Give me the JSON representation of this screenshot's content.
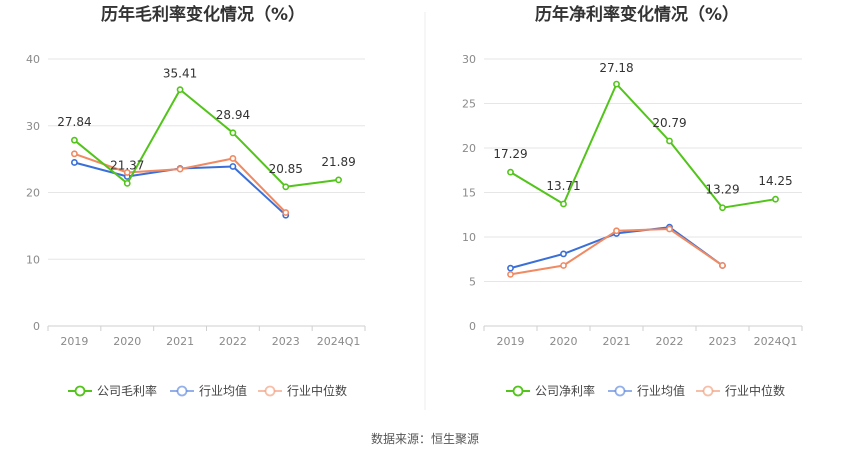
{
  "colors": {
    "company": "#52c41a",
    "avg": "#3a6fd8",
    "median": "#f08a62"
  },
  "source": "数据来源：恒生聚源",
  "chart_data": [
    {
      "type": "line",
      "title": "历年毛利率变化情况（%）",
      "categories": [
        "2019",
        "2020",
        "2021",
        "2022",
        "2023",
        "2024Q1"
      ],
      "ylim": [
        0,
        40
      ],
      "yticks": [
        0,
        10,
        20,
        30,
        40
      ],
      "grid": true,
      "legend_position": "bottom",
      "series": [
        {
          "name": "公司毛利率",
          "key": "company",
          "values": [
            27.84,
            21.37,
            35.41,
            28.94,
            20.85,
            21.89
          ],
          "labels": [
            "27.84",
            "21.37",
            "35.41",
            "28.94",
            "20.85",
            "21.89"
          ]
        },
        {
          "name": "行业均值",
          "key": "avg",
          "values": [
            24.5,
            22.4,
            23.6,
            23.9,
            16.6,
            null
          ]
        },
        {
          "name": "行业中位数",
          "key": "median",
          "values": [
            25.8,
            23.0,
            23.5,
            25.1,
            17.0,
            null
          ]
        }
      ]
    },
    {
      "type": "line",
      "title": "历年净利率变化情况（%）",
      "categories": [
        "2019",
        "2020",
        "2021",
        "2022",
        "2023",
        "2024Q1"
      ],
      "ylim": [
        0,
        30
      ],
      "yticks": [
        0,
        5,
        10,
        15,
        20,
        25,
        30
      ],
      "grid": true,
      "legend_position": "bottom",
      "series": [
        {
          "name": "公司净利率",
          "key": "company",
          "values": [
            17.29,
            13.71,
            27.18,
            20.79,
            13.29,
            14.25
          ],
          "labels": [
            "17.29",
            "13.71",
            "27.18",
            "20.79",
            "13.29",
            "14.25"
          ]
        },
        {
          "name": "行业均值",
          "key": "avg",
          "values": [
            6.5,
            8.1,
            10.4,
            11.1,
            6.8,
            null
          ]
        },
        {
          "name": "行业中位数",
          "key": "median",
          "values": [
            5.8,
            6.8,
            10.7,
            10.9,
            6.8,
            null
          ]
        }
      ]
    }
  ]
}
